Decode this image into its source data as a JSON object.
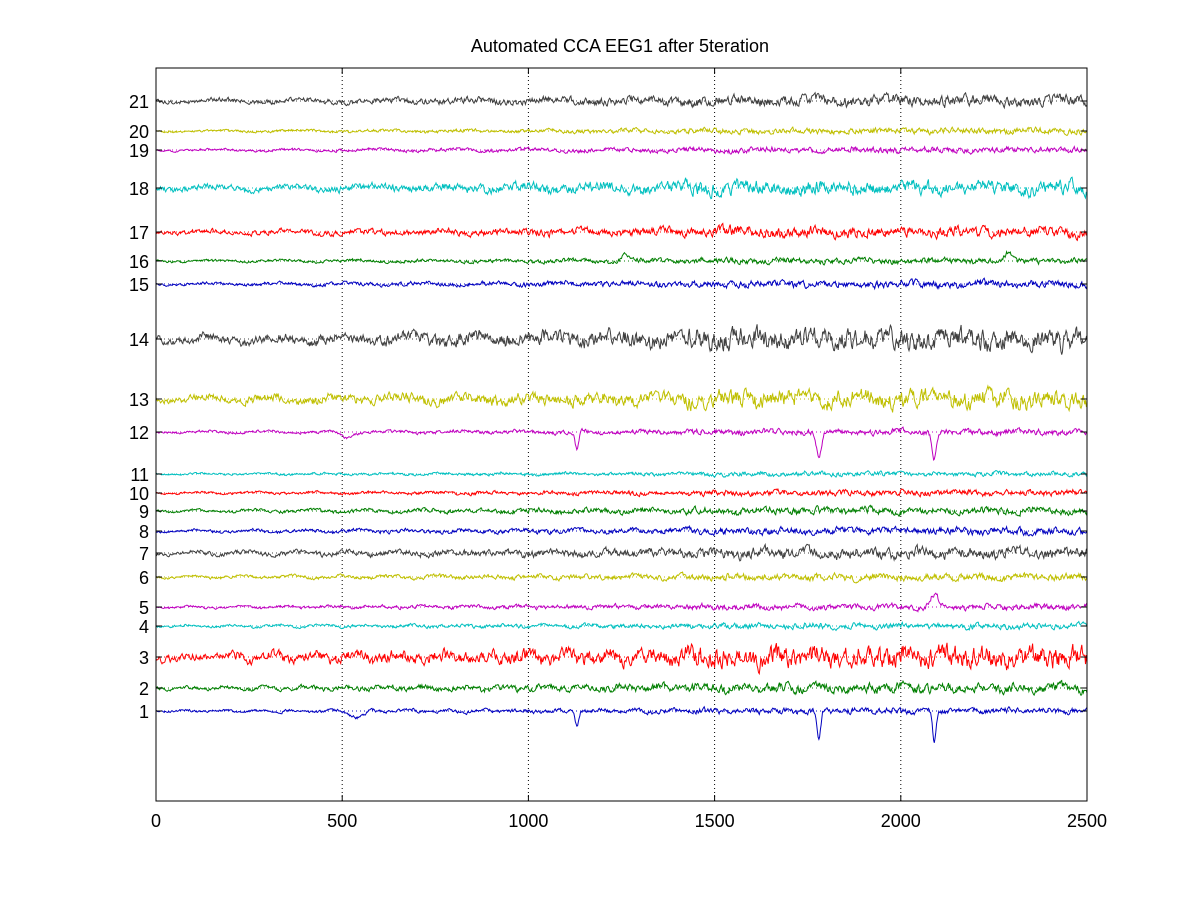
{
  "chart_data": {
    "type": "line",
    "title": "Automated CCA EEG1 after  5teration",
    "xlabel": "",
    "ylabel": "",
    "xlim": [
      0,
      2500
    ],
    "xticks": [
      0,
      500,
      1000,
      1500,
      2000,
      2500
    ],
    "xtick_labels": [
      "0",
      "500",
      "1000",
      "1500",
      "2000",
      "2500"
    ],
    "grid": "vertical dotted lines at x ticks",
    "sample_count": 2500,
    "ytick_labels": [
      "1",
      "2",
      "3",
      "4",
      "5",
      "6",
      "7",
      "8",
      "9",
      "10",
      "11",
      "12",
      "13",
      "14",
      "15",
      "16",
      "17",
      "18",
      "19",
      "20",
      "21"
    ],
    "series": [
      {
        "label": "1",
        "color": "#0000bf",
        "noise": 2.5,
        "bumps": [
          {
            "x": 1130,
            "amp": 14,
            "w": 6
          },
          {
            "x": 1780,
            "amp": 30,
            "w": 7
          },
          {
            "x": 2090,
            "amp": 30,
            "w": 7
          },
          {
            "x": 540,
            "amp": 6,
            "w": 25
          }
        ]
      },
      {
        "label": "2",
        "color": "#007f00",
        "noise": 4.0,
        "bumps": []
      },
      {
        "label": "3",
        "color": "#ff0000",
        "noise": 9.0,
        "bumps": []
      },
      {
        "label": "4",
        "color": "#00bfbf",
        "noise": 2.5,
        "bumps": []
      },
      {
        "label": "5",
        "color": "#bf00bf",
        "noise": 2.5,
        "bumps": [
          {
            "x": 2090,
            "amp": -12,
            "w": 15
          }
        ]
      },
      {
        "label": "6",
        "color": "#bfbf00",
        "noise": 3.0,
        "bumps": []
      },
      {
        "label": "7",
        "color": "#3f3f3f",
        "noise": 4.5,
        "bumps": []
      },
      {
        "label": "8",
        "color": "#0000bf",
        "noise": 3.0,
        "bumps": []
      },
      {
        "label": "9",
        "color": "#007f00",
        "noise": 3.0,
        "bumps": []
      },
      {
        "label": "10",
        "color": "#ff0000",
        "noise": 2.5,
        "bumps": []
      },
      {
        "label": "11",
        "color": "#00bfbf",
        "noise": 2.0,
        "bumps": []
      },
      {
        "label": "12",
        "color": "#bf00bf",
        "noise": 2.5,
        "bumps": [
          {
            "x": 1130,
            "amp": 18,
            "w": 7
          },
          {
            "x": 1780,
            "amp": 26,
            "w": 9
          },
          {
            "x": 2090,
            "amp": 26,
            "w": 8
          },
          {
            "x": 510,
            "amp": 6,
            "w": 20
          }
        ]
      },
      {
        "label": "13",
        "color": "#bfbf00",
        "noise": 7.5,
        "bumps": []
      },
      {
        "label": "14",
        "color": "#3f3f3f",
        "noise": 9.0,
        "bumps": []
      },
      {
        "label": "15",
        "color": "#0000bf",
        "noise": 3.0,
        "bumps": []
      },
      {
        "label": "16",
        "color": "#007f00",
        "noise": 2.5,
        "bumps": [
          {
            "x": 1260,
            "amp": -8,
            "w": 12
          },
          {
            "x": 2290,
            "amp": -8,
            "w": 15
          }
        ]
      },
      {
        "label": "17",
        "color": "#ff0000",
        "noise": 4.5,
        "bumps": []
      },
      {
        "label": "18",
        "color": "#00bfbf",
        "noise": 6.0,
        "bumps": []
      },
      {
        "label": "19",
        "color": "#bf00bf",
        "noise": 2.5,
        "bumps": []
      },
      {
        "label": "20",
        "color": "#bfbf00",
        "noise": 2.5,
        "bumps": []
      },
      {
        "label": "21",
        "color": "#3f3f3f",
        "noise": 4.5,
        "bumps": []
      }
    ]
  }
}
